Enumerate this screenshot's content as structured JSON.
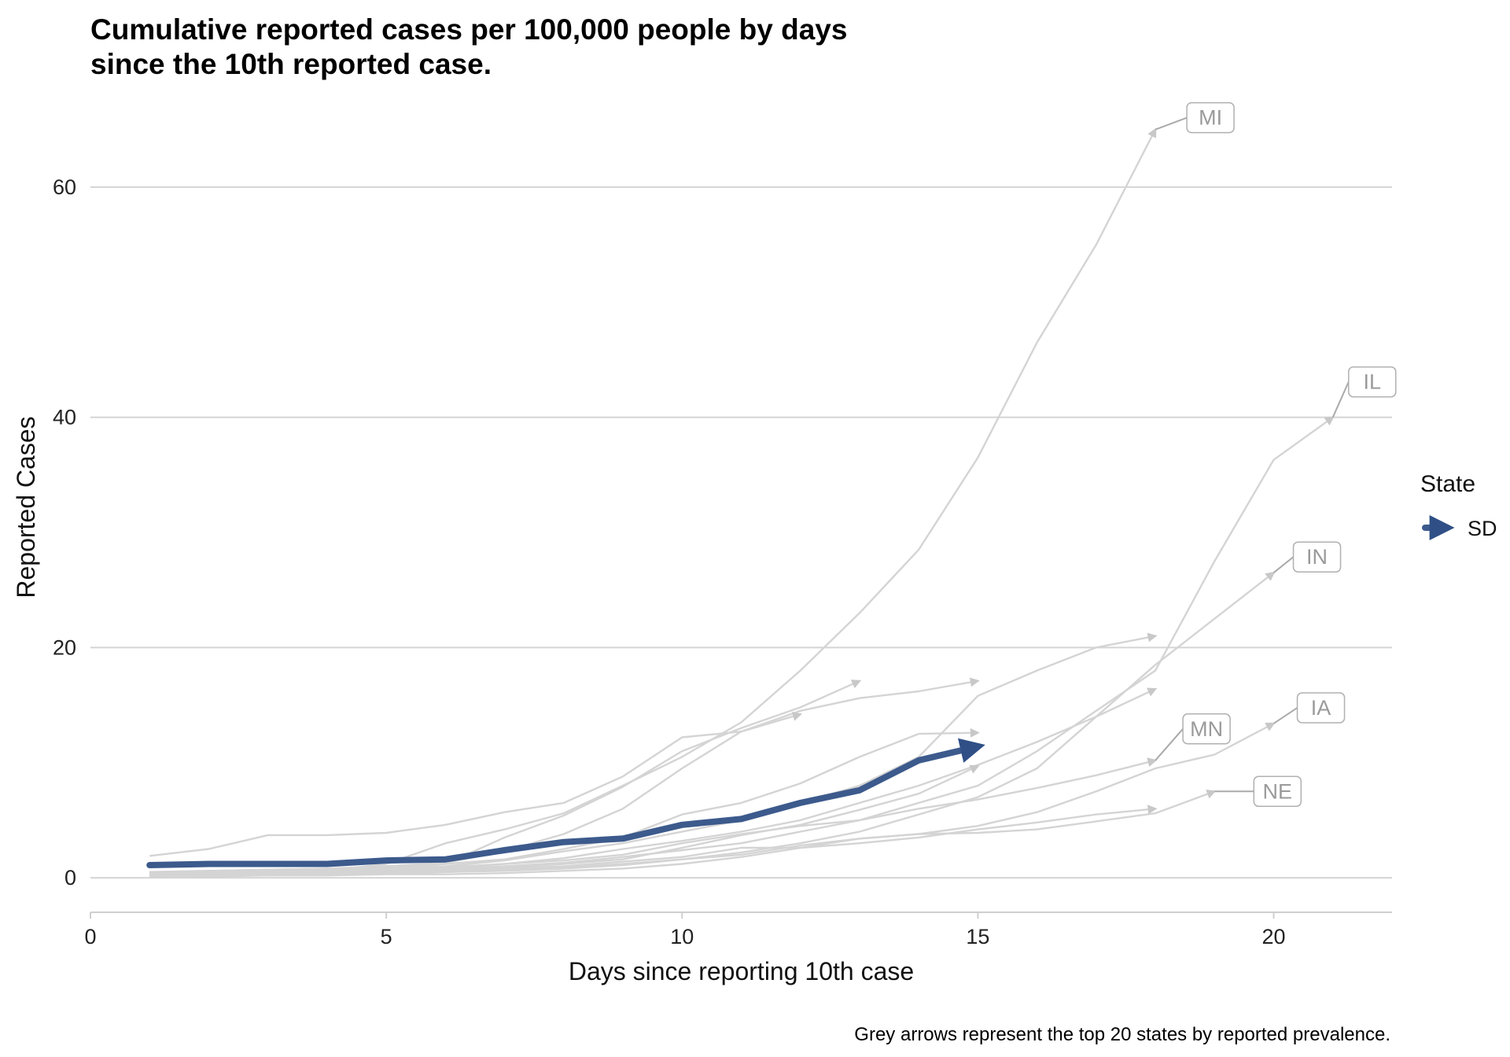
{
  "chart_data": {
    "type": "line",
    "title": "Cumulative reported cases per 100,000 people by days\nsince the 10th reported case.",
    "xlabel": "Days since reporting 10th case",
    "ylabel": "Reported Cases",
    "caption": "Grey arrows represent the top 20 states by reported prevalence.",
    "xlim": [
      0,
      22
    ],
    "ylim": [
      -3,
      66
    ],
    "x_ticks": [
      0,
      5,
      10,
      15,
      20
    ],
    "y_ticks": [
      0,
      20,
      40,
      60
    ],
    "grid": "horizontal major",
    "legend": {
      "title": "State",
      "position": "right",
      "entries": [
        {
          "label": "SD",
          "color": "#3c5a8c"
        }
      ]
    },
    "highlight_color": "#3c5a8c",
    "background_color": "#c8c8c8",
    "highlight_series": {
      "name": "SD",
      "x": [
        1,
        2,
        3,
        4,
        5,
        6,
        7,
        8,
        9,
        10,
        11,
        12,
        13,
        14,
        15
      ],
      "y": [
        1.1,
        1.2,
        1.2,
        1.2,
        1.5,
        1.6,
        2.4,
        3.1,
        3.4,
        4.6,
        5.1,
        6.5,
        7.6,
        10.2,
        11.4
      ]
    },
    "background_series": [
      {
        "name": "MI",
        "label": "MI",
        "x": [
          1,
          2,
          3,
          4,
          5,
          6,
          7,
          8,
          9,
          10,
          11,
          12,
          13,
          14,
          15,
          16,
          17,
          18
        ],
        "y": [
          0.3,
          0.4,
          0.5,
          0.6,
          1.2,
          3.0,
          4.2,
          5.6,
          8.0,
          10.5,
          13.5,
          18.0,
          23.0,
          28.5,
          36.5,
          46.5,
          55.0,
          65.0
        ]
      },
      {
        "name": "IL",
        "label": "IL",
        "x": [
          1,
          2,
          3,
          4,
          5,
          6,
          7,
          8,
          9,
          10,
          11,
          12,
          13,
          14,
          15,
          16,
          17,
          18,
          19,
          20,
          21
        ],
        "y": [
          0.2,
          0.3,
          0.4,
          0.5,
          0.6,
          0.8,
          1.0,
          1.3,
          1.8,
          2.4,
          3.0,
          4.0,
          5.0,
          6.5,
          8.0,
          11.0,
          14.5,
          18.0,
          27.5,
          36.3,
          40.0
        ]
      },
      {
        "name": "IN",
        "label": "IN",
        "x": [
          1,
          2,
          3,
          4,
          5,
          6,
          7,
          8,
          9,
          10,
          11,
          12,
          13,
          14,
          15,
          16,
          17,
          18,
          19,
          20
        ],
        "y": [
          0.1,
          0.2,
          0.2,
          0.3,
          0.4,
          0.5,
          0.6,
          0.8,
          1.1,
          1.6,
          2.2,
          3.0,
          4.0,
          5.5,
          7.0,
          9.5,
          14.0,
          18.5,
          22.5,
          26.5
        ]
      },
      {
        "name": "IA",
        "label": "IA",
        "x": [
          1,
          2,
          3,
          4,
          5,
          6,
          7,
          8,
          9,
          10,
          11,
          12,
          13,
          14,
          15,
          16,
          17,
          18,
          19,
          20
        ],
        "y": [
          0.1,
          0.2,
          0.2,
          0.3,
          0.4,
          0.5,
          0.7,
          0.9,
          1.2,
          1.6,
          2.0,
          2.8,
          3.4,
          3.8,
          4.5,
          5.7,
          7.5,
          9.5,
          10.7,
          13.4
        ]
      },
      {
        "name": "MN",
        "label": "MN",
        "x": [
          1,
          2,
          3,
          4,
          5,
          6,
          7,
          8,
          9,
          10,
          11,
          12,
          13,
          14,
          15,
          16,
          17,
          18
        ],
        "y": [
          0.3,
          0.4,
          0.5,
          0.7,
          0.8,
          0.9,
          1.2,
          1.5,
          2.0,
          3.0,
          3.8,
          4.5,
          5.0,
          6.0,
          6.8,
          7.8,
          8.9,
          10.2
        ]
      },
      {
        "name": "NE",
        "label": "NE",
        "x": [
          1,
          2,
          3,
          4,
          5,
          6,
          7,
          8,
          9,
          10,
          11,
          12,
          13,
          14,
          15,
          16,
          17,
          18,
          19
        ],
        "y": [
          0.1,
          0.1,
          0.2,
          0.2,
          0.3,
          0.3,
          0.4,
          0.6,
          0.8,
          1.2,
          1.8,
          2.6,
          3.4,
          3.8,
          3.9,
          4.2,
          4.9,
          5.6,
          7.5
        ]
      },
      {
        "x": [
          1,
          2,
          3,
          4,
          5,
          6,
          7,
          8,
          9,
          10,
          11,
          12,
          13,
          14,
          15
        ],
        "y": [
          1.9,
          2.5,
          3.7,
          3.7,
          3.9,
          4.6,
          5.7,
          6.5,
          8.8,
          12.2,
          12.7,
          14.5,
          15.6,
          16.2,
          17.1
        ]
      },
      {
        "x": [
          1,
          2,
          3,
          4,
          5,
          6,
          7,
          8,
          9,
          10,
          11,
          12,
          13
        ],
        "y": [
          0.4,
          0.5,
          0.6,
          0.7,
          0.9,
          1.2,
          3.5,
          5.4,
          7.9,
          11.0,
          13.0,
          14.8,
          17.1
        ]
      },
      {
        "x": [
          1,
          2,
          3,
          4,
          5,
          6,
          7,
          8,
          9,
          10,
          11,
          12
        ],
        "y": [
          0.5,
          0.6,
          0.7,
          0.8,
          1.0,
          1.3,
          2.3,
          3.8,
          6.0,
          9.5,
          12.7,
          14.2
        ]
      },
      {
        "x": [
          1,
          2,
          3,
          4,
          5,
          6,
          7,
          8,
          9,
          10,
          11,
          12,
          13,
          14,
          15
        ],
        "y": [
          0.5,
          0.6,
          0.7,
          0.8,
          1.0,
          1.2,
          1.6,
          2.5,
          3.5,
          5.5,
          6.5,
          8.2,
          10.5,
          12.5,
          12.6
        ]
      },
      {
        "x": [
          1,
          2,
          3,
          4,
          5,
          6,
          7,
          8,
          9,
          10,
          11,
          12,
          13,
          14,
          15,
          16,
          17,
          18
        ],
        "y": [
          0.3,
          0.4,
          0.5,
          0.6,
          0.7,
          0.9,
          1.2,
          1.7,
          2.5,
          3.2,
          4.0,
          5.0,
          6.5,
          8.0,
          9.8,
          11.8,
          14.0,
          16.4
        ]
      },
      {
        "x": [
          1,
          2,
          3,
          4,
          5,
          6,
          7,
          8,
          9,
          10,
          11,
          12,
          13,
          14,
          15,
          16,
          17,
          18
        ],
        "y": [
          0.4,
          0.5,
          0.6,
          0.7,
          0.9,
          1.0,
          1.5,
          2.3,
          3.0,
          4.0,
          5.0,
          6.5,
          8.0,
          10.5,
          15.8,
          18.0,
          20.0,
          21.0
        ]
      },
      {
        "x": [
          1,
          2,
          3,
          4,
          5,
          6,
          7,
          8,
          9,
          10,
          11,
          12,
          13,
          14,
          15
        ],
        "y": [
          0.2,
          0.3,
          0.4,
          0.5,
          0.6,
          0.7,
          0.9,
          1.2,
          1.6,
          2.6,
          3.7,
          4.6,
          5.9,
          7.3,
          9.7
        ]
      },
      {
        "x": [
          1,
          2,
          3,
          4,
          5,
          6,
          7,
          8,
          9,
          10,
          11,
          12,
          13,
          14,
          15,
          16,
          17,
          18
        ],
        "y": [
          0.1,
          0.2,
          0.3,
          0.4,
          0.5,
          0.6,
          0.8,
          1.0,
          1.4,
          1.8,
          2.6,
          2.6,
          3.0,
          3.5,
          4.2,
          4.8,
          5.5,
          6.0
        ]
      }
    ]
  }
}
